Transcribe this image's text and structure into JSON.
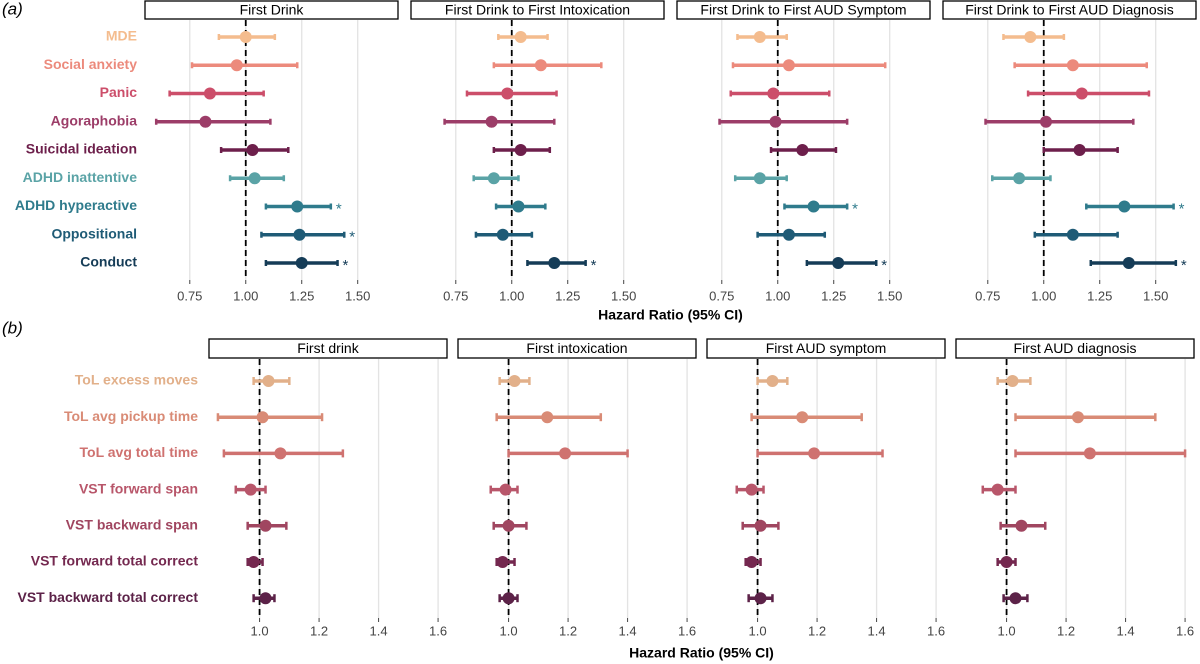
{
  "chart_data": [
    {
      "type": "forest",
      "panel_label": "(a)",
      "xlabel": "Hazard Ratio (95% CI)",
      "categories": [
        "MDE",
        "Social anxiety",
        "Panic",
        "Agoraphobia",
        "Suicidal ideation",
        "ADHD inattentive",
        "ADHD hyperactive",
        "Oppositional",
        "Conduct"
      ],
      "colors": [
        "#f4bc8e",
        "#ec8a7c",
        "#cc4e6a",
        "#9c3d68",
        "#6d1f4b",
        "#5aa3a6",
        "#2f7b8c",
        "#1f5b76",
        "#153c57"
      ],
      "xlim": [
        0.55,
        1.68
      ],
      "xticks": [
        0.75,
        {
          "value": 1,
          "label": "1.00"
        },
        1.25,
        {
          "value": 1.5,
          "label": "1.50"
        }
      ],
      "reference_line": 1,
      "grid": true,
      "panels": [
        {
          "title": "First Drink",
          "estimates": [
            1.0,
            0.96,
            0.84,
            0.82,
            1.03,
            1.04,
            1.23,
            1.24,
            1.25
          ],
          "lower": [
            0.88,
            0.76,
            0.66,
            0.6,
            0.89,
            0.93,
            1.09,
            1.07,
            1.09
          ],
          "upper": [
            1.13,
            1.23,
            1.08,
            1.11,
            1.19,
            1.17,
            1.38,
            1.44,
            1.41
          ],
          "significance": [
            null,
            null,
            null,
            null,
            null,
            null,
            "*",
            "*",
            "*"
          ]
        },
        {
          "title": "First Drink to First Intoxication",
          "estimates": [
            1.04,
            1.13,
            0.98,
            0.91,
            1.04,
            0.92,
            1.03,
            0.96,
            1.19
          ],
          "lower": [
            0.94,
            0.92,
            0.8,
            0.7,
            0.92,
            0.83,
            0.93,
            0.84,
            1.07
          ],
          "upper": [
            1.16,
            1.4,
            1.2,
            1.19,
            1.17,
            1.03,
            1.15,
            1.09,
            1.33
          ],
          "significance": [
            null,
            null,
            null,
            null,
            null,
            null,
            null,
            null,
            "*"
          ]
        },
        {
          "title": "First Drink to First AUD Symptom",
          "estimates": [
            0.92,
            1.05,
            0.98,
            0.99,
            1.11,
            0.92,
            1.16,
            1.05,
            1.27
          ],
          "lower": [
            0.82,
            0.8,
            0.79,
            0.74,
            0.97,
            0.81,
            1.03,
            0.91,
            1.13
          ],
          "upper": [
            1.04,
            1.48,
            1.23,
            1.31,
            1.26,
            1.04,
            1.31,
            1.21,
            1.44
          ],
          "significance": [
            null,
            null,
            null,
            null,
            null,
            null,
            "*",
            null,
            "*"
          ]
        },
        {
          "title": "First Drink to First AUD Diagnosis",
          "estimates": [
            0.94,
            1.13,
            1.17,
            1.01,
            1.16,
            0.89,
            1.36,
            1.13,
            1.38
          ],
          "lower": [
            0.82,
            0.87,
            0.93,
            0.74,
            1.0,
            0.77,
            1.19,
            0.96,
            1.21
          ],
          "upper": [
            1.09,
            1.46,
            1.47,
            1.4,
            1.33,
            1.03,
            1.58,
            1.33,
            1.59
          ],
          "significance": [
            null,
            null,
            null,
            null,
            null,
            null,
            "*",
            null,
            "*"
          ]
        }
      ]
    },
    {
      "type": "forest",
      "panel_label": "(b)",
      "xlabel": "Hazard Ratio (95% CI)",
      "categories": [
        "ToL excess moves",
        "ToL avg pickup time",
        "ToL avg total time",
        "VST forward span",
        "VST backward span",
        "VST forward total correct",
        "VST backward total correct"
      ],
      "colors": [
        "#e2b08a",
        "#d98b76",
        "#cf7270",
        "#b8566a",
        "#a04660",
        "#74284f",
        "#5c2248"
      ],
      "xlim": [
        0.83,
        1.63
      ],
      "xticks": [
        {
          "value": 1,
          "label": "1.0"
        },
        1.2,
        1.4,
        1.6
      ],
      "reference_line": 1,
      "grid": true,
      "panels": [
        {
          "title": "First drink",
          "estimates": [
            1.03,
            1.01,
            1.07,
            0.97,
            1.02,
            0.98,
            1.02
          ],
          "lower": [
            0.98,
            0.86,
            0.88,
            0.92,
            0.96,
            0.96,
            0.98
          ],
          "upper": [
            1.1,
            1.21,
            1.28,
            1.02,
            1.09,
            1.01,
            1.05
          ]
        },
        {
          "title": "First intoxication",
          "estimates": [
            1.02,
            1.13,
            1.19,
            0.99,
            1.0,
            0.98,
            1.0
          ],
          "lower": [
            0.97,
            0.96,
            1.0,
            0.94,
            0.95,
            0.96,
            0.97
          ],
          "upper": [
            1.07,
            1.31,
            1.4,
            1.03,
            1.06,
            1.02,
            1.03
          ]
        },
        {
          "title": "First AUD symptom",
          "estimates": [
            1.05,
            1.15,
            1.19,
            0.98,
            1.01,
            0.98,
            1.01
          ],
          "lower": [
            1.0,
            0.98,
            1.0,
            0.93,
            0.95,
            0.96,
            0.97
          ],
          "upper": [
            1.1,
            1.35,
            1.42,
            1.02,
            1.07,
            1.01,
            1.05
          ]
        },
        {
          "title": "First AUD diagnosis",
          "estimates": [
            1.02,
            1.24,
            1.28,
            0.97,
            1.05,
            1.0,
            1.03
          ],
          "lower": [
            0.97,
            1.03,
            1.03,
            0.92,
            0.98,
            0.97,
            0.99
          ],
          "upper": [
            1.08,
            1.5,
            1.6,
            1.03,
            1.13,
            1.03,
            1.07
          ]
        }
      ]
    }
  ]
}
